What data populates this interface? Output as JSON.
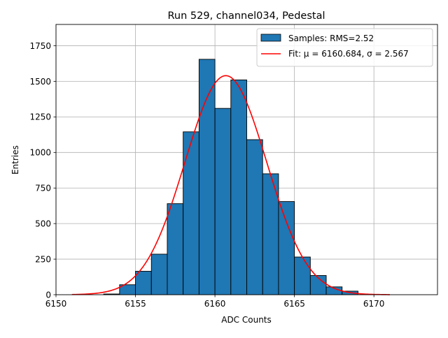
{
  "chart_data": {
    "type": "bar",
    "title": "Run 529, channel034, Pedestal",
    "xlabel": "ADC Counts",
    "ylabel": "Entries",
    "xlim": [
      6150,
      6174
    ],
    "ylim": [
      0,
      1900
    ],
    "xticks": [
      6150,
      6155,
      6160,
      6165,
      6170
    ],
    "yticks": [
      0,
      250,
      500,
      750,
      1000,
      1250,
      1500,
      1750
    ],
    "grid": true,
    "legend_position": "top-right",
    "histogram": {
      "name": "Samples: RMS=2.52",
      "color": "#1f77b4",
      "bin_width": 1,
      "bins": [
        6153,
        6154,
        6155,
        6156,
        6157,
        6158,
        6159,
        6160,
        6161,
        6162,
        6163,
        6164,
        6165,
        6166,
        6167,
        6168
      ],
      "values": [
        5,
        70,
        165,
        285,
        640,
        1145,
        1655,
        1310,
        1510,
        1090,
        850,
        655,
        265,
        135,
        55,
        25
      ]
    },
    "fit": {
      "name": "Fit: μ = 6160.684, σ = 2.567",
      "color": "#ff0000",
      "mu": 6160.684,
      "sigma": 2.567,
      "amplitude": 1540,
      "x_range": [
        6151,
        6171
      ]
    }
  }
}
